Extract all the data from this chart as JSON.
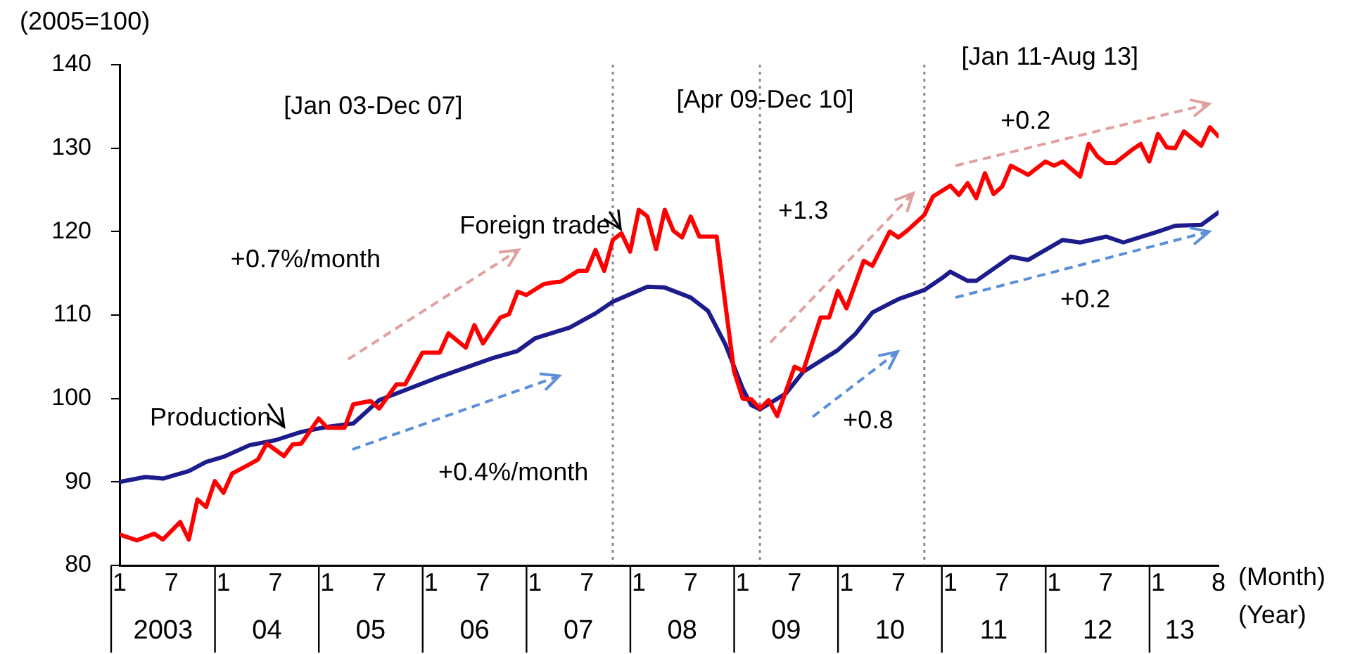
{
  "chart_data": {
    "type": "line",
    "ylabel": "(2005=100)",
    "xlabel": "(Month)",
    "xlim": [
      "2003-01",
      "2013-08"
    ],
    "xticks": [
      {
        "value": "2003-01",
        "label": "1"
      },
      {
        "value": "2003-07",
        "label": "7"
      },
      {
        "value": "2004-01",
        "label": "1"
      },
      {
        "value": "2004-07",
        "label": "7"
      },
      {
        "value": "2005-01",
        "label": "1"
      },
      {
        "value": "2005-07",
        "label": "7"
      },
      {
        "value": "2006-01",
        "label": "1"
      },
      {
        "value": "2006-07",
        "label": "7"
      },
      {
        "value": "2007-01",
        "label": "1"
      },
      {
        "value": "2007-07",
        "label": "7"
      },
      {
        "value": "2008-01",
        "label": "1"
      },
      {
        "value": "2008-07",
        "label": "7"
      },
      {
        "value": "2009-01",
        "label": "1"
      },
      {
        "value": "2009-07",
        "label": "7"
      },
      {
        "value": "2010-01",
        "label": "1"
      },
      {
        "value": "2010-07",
        "label": "7"
      },
      {
        "value": "2011-01",
        "label": "1"
      },
      {
        "value": "2011-07",
        "label": "7"
      },
      {
        "value": "2012-01",
        "label": "1"
      },
      {
        "value": "2012-07",
        "label": "7"
      },
      {
        "value": "2013-01",
        "label": "1"
      },
      {
        "value": "2013-08",
        "label": "8"
      }
    ],
    "ylim": [
      80,
      140
    ],
    "yticks": [
      80,
      90,
      100,
      110,
      120,
      130,
      140
    ],
    "grid": false,
    "legend": false,
    "marker": "none",
    "line_style": "solid",
    "series": [
      {
        "name": "Foreign trade",
        "color": "#ff0000",
        "x": [
          "2003-01",
          "2003-03",
          "2003-05",
          "2003-06",
          "2003-08",
          "2003-09",
          "2003-10",
          "2003-11",
          "2003-12",
          "2004-01",
          "2004-02",
          "2004-04",
          "2004-05",
          "2004-06",
          "2004-08",
          "2004-09",
          "2004-10",
          "2004-12",
          "2005-01",
          "2005-03",
          "2005-04",
          "2005-06",
          "2005-07",
          "2005-09",
          "2005-10",
          "2005-12",
          "2006-02",
          "2006-03",
          "2006-05",
          "2006-06",
          "2006-07",
          "2006-09",
          "2006-10",
          "2006-11",
          "2006-12",
          "2007-02",
          "2007-03",
          "2007-04",
          "2007-06",
          "2007-07",
          "2007-08",
          "2007-09",
          "2007-10",
          "2007-11",
          "2007-12",
          "2008-01",
          "2008-02",
          "2008-03",
          "2008-04",
          "2008-05",
          "2008-06",
          "2008-07",
          "2008-08",
          "2008-10",
          "2008-12",
          "2009-01",
          "2009-02",
          "2009-03",
          "2009-04",
          "2009-05",
          "2009-07",
          "2009-08",
          "2009-10",
          "2009-11",
          "2009-12",
          "2010-01",
          "2010-03",
          "2010-04",
          "2010-06",
          "2010-07",
          "2010-08",
          "2010-10",
          "2010-11",
          "2011-01",
          "2011-02",
          "2011-03",
          "2011-04",
          "2011-05",
          "2011-06",
          "2011-07",
          "2011-08",
          "2011-10",
          "2011-12",
          "2012-01",
          "2012-02",
          "2012-04",
          "2012-05",
          "2012-06",
          "2012-07",
          "2012-08",
          "2012-10",
          "2012-11",
          "2012-12",
          "2013-01",
          "2013-02",
          "2013-03",
          "2013-04",
          "2013-06",
          "2013-07",
          "2013-08"
        ],
        "values": [
          83.7,
          83.0,
          83.8,
          83.1,
          85.2,
          83.1,
          87.9,
          87.0,
          90.1,
          88.7,
          91.0,
          92.1,
          92.7,
          94.6,
          93.1,
          94.5,
          94.6,
          97.6,
          96.5,
          96.5,
          99.3,
          99.7,
          98.8,
          101.7,
          101.7,
          105.5,
          105.5,
          107.8,
          106.1,
          108.8,
          106.6,
          109.7,
          110.1,
          112.8,
          112.4,
          113.7,
          113.9,
          114.0,
          115.3,
          115.3,
          117.8,
          115.3,
          119.0,
          119.8,
          117.6,
          122.6,
          121.8,
          117.9,
          122.6,
          120.1,
          119.3,
          121.8,
          119.4,
          119.4,
          103.3,
          100.0,
          99.9,
          98.8,
          99.8,
          97.9,
          103.8,
          103.3,
          109.7,
          109.7,
          112.9,
          110.8,
          116.5,
          115.9,
          120.0,
          119.3,
          120.1,
          122.0,
          124.2,
          125.5,
          124.4,
          125.8,
          124.0,
          127.0,
          124.5,
          125.4,
          127.9,
          126.8,
          128.4,
          127.9,
          128.4,
          126.6,
          130.5,
          129.0,
          128.2,
          128.2,
          129.8,
          130.5,
          128.4,
          131.7,
          130.1,
          130.0,
          132.0,
          130.3,
          132.5,
          131.4
        ]
      },
      {
        "name": "Production",
        "color": "#1c1c8c",
        "x": [
          "2003-01",
          "2003-04",
          "2003-06",
          "2003-09",
          "2003-11",
          "2004-01",
          "2004-04",
          "2004-07",
          "2004-10",
          "2005-01",
          "2005-04",
          "2005-07",
          "2005-10",
          "2006-02",
          "2006-08",
          "2006-11",
          "2007-01",
          "2007-05",
          "2007-08",
          "2007-10",
          "2008-02",
          "2008-04",
          "2008-07",
          "2008-09",
          "2008-11",
          "2009-01",
          "2009-02",
          "2009-03",
          "2009-06",
          "2009-08",
          "2009-12",
          "2010-02",
          "2010-04",
          "2010-07",
          "2010-10",
          "2010-12",
          "2011-01",
          "2011-03",
          "2011-04",
          "2011-08",
          "2011-10",
          "2012-02",
          "2012-04",
          "2012-07",
          "2012-09",
          "2013-01",
          "2013-03",
          "2013-06",
          "2013-08"
        ],
        "values": [
          90.0,
          90.6,
          90.4,
          91.3,
          92.4,
          93.0,
          94.4,
          95.0,
          96.0,
          96.6,
          97.0,
          99.8,
          101.0,
          102.6,
          104.8,
          105.7,
          107.2,
          108.5,
          110.2,
          111.6,
          113.4,
          113.3,
          112.1,
          110.5,
          106.5,
          101.2,
          99.2,
          98.7,
          100.6,
          103.2,
          105.8,
          107.7,
          110.3,
          111.9,
          113.0,
          114.4,
          115.2,
          114.1,
          114.1,
          117.0,
          116.6,
          119.0,
          118.7,
          119.4,
          118.7,
          120.0,
          120.7,
          120.8,
          122.3
        ]
      }
    ],
    "ref_lines": [
      {
        "axis": "x",
        "value": "2007-10",
        "color": "#888888",
        "line_style": "dotted"
      },
      {
        "axis": "x",
        "value": "2009-03",
        "color": "#888888",
        "line_style": "dotted"
      },
      {
        "axis": "x",
        "value": "2010-10",
        "color": "#888888",
        "line_style": "dotted"
      }
    ],
    "annotations": [
      "[Jan 03-Dec 07]",
      "[Apr 09-Dec 10]",
      "[Jan 11-Aug 13]",
      "+0.7%/month",
      "+0.4%/month",
      "+1.3",
      "+0.8",
      "+0.2",
      "+0.2",
      "(Year)",
      "2003",
      "04",
      "05",
      "06",
      "07",
      "08",
      "09",
      "10",
      "11",
      "12",
      "13"
    ]
  }
}
